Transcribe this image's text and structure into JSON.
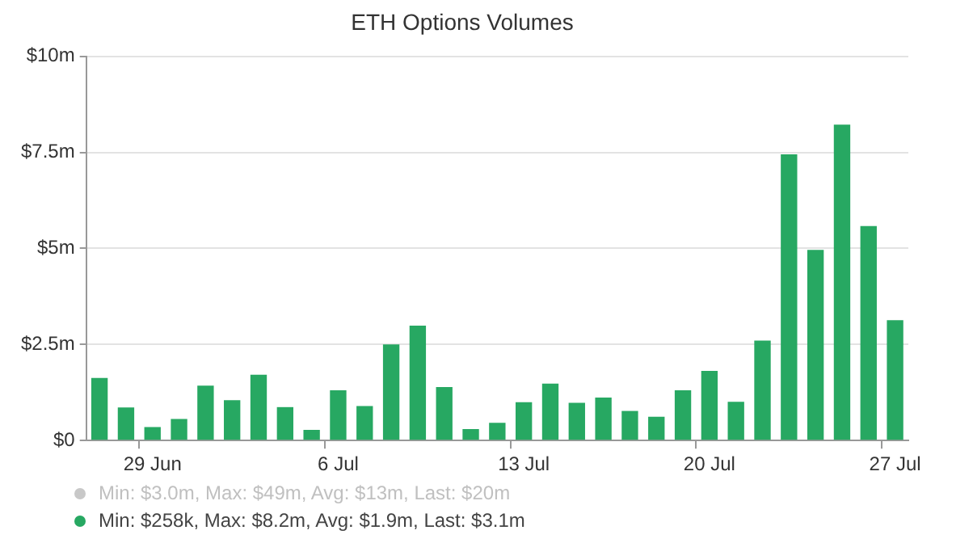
{
  "chart_data": {
    "type": "bar",
    "title": "ETH Options Volumes",
    "categories": [
      null,
      null,
      "29 Jun",
      null,
      null,
      null,
      null,
      null,
      null,
      "6 Jul",
      null,
      null,
      null,
      null,
      null,
      null,
      "13 Jul",
      null,
      null,
      null,
      null,
      null,
      null,
      "20 Jul",
      null,
      null,
      null,
      null,
      null,
      null,
      "27 Jul"
    ],
    "values": [
      1.63,
      0.86,
      0.35,
      0.56,
      1.43,
      1.05,
      1.71,
      0.87,
      0.28,
      1.31,
      0.9,
      2.5,
      2.99,
      1.39,
      0.3,
      0.46,
      1.0,
      1.48,
      0.98,
      1.12,
      0.77,
      0.62,
      1.31,
      1.81,
      1.01,
      2.6,
      7.45,
      4.96,
      8.22,
      5.58,
      3.13
    ],
    "color": "#27a862",
    "ylim": [
      0,
      10
    ],
    "yticks": [
      {
        "value": 0,
        "label": "$0"
      },
      {
        "value": 2.5,
        "label": "$2.5m"
      },
      {
        "value": 5,
        "label": "$5m"
      },
      {
        "value": 7.5,
        "label": "$7.5m"
      },
      {
        "value": 10,
        "label": "$10m"
      }
    ],
    "grid": "y",
    "annotations": [
      "Min: $3.0m, Max: $49m, Avg: $13m, Last: $20m",
      "Min: $258k, Max: $8.2m, Avg: $1.9m, Last: $3.1m"
    ]
  }
}
